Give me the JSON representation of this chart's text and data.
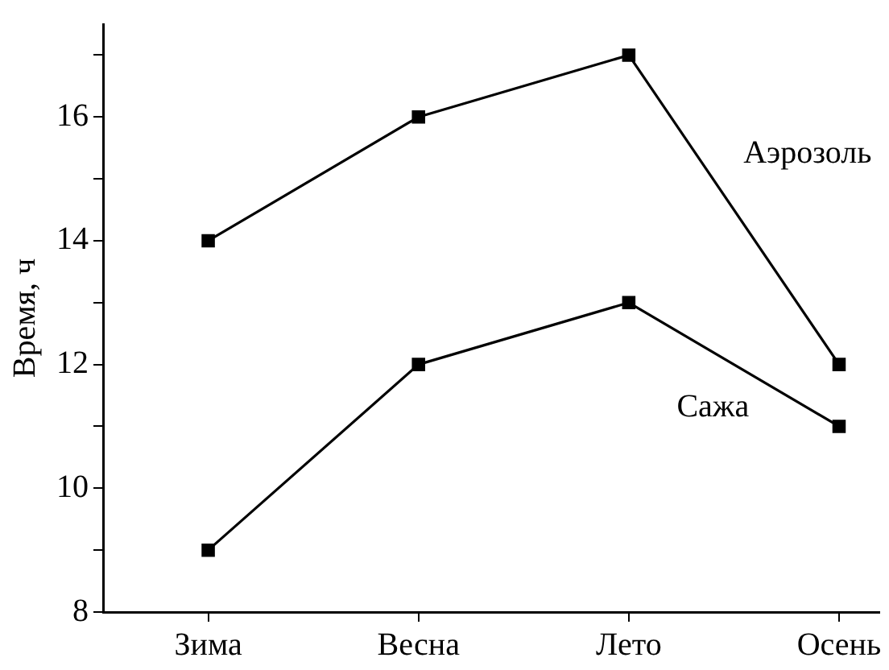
{
  "chart_data": {
    "type": "line",
    "ylabel": "Время, ч",
    "categories": [
      "Зима",
      "Весна",
      "Лето",
      "Осень"
    ],
    "series": [
      {
        "name": "Аэрозоль",
        "color": "#000000",
        "values": [
          14,
          16,
          17,
          12
        ]
      },
      {
        "name": "Сажа",
        "color": "#000000",
        "values": [
          9,
          12,
          13,
          11
        ]
      }
    ],
    "ylim": [
      8,
      17.5
    ],
    "yticks": [
      8,
      {
        "value": 9,
        "label": null
      },
      10,
      {
        "value": 11,
        "label": null
      },
      12,
      {
        "value": 13,
        "label": null
      },
      14,
      {
        "value": 15,
        "label": null
      },
      16,
      {
        "value": 17,
        "label": null
      }
    ],
    "marker": "square",
    "line_style": "solid",
    "grid": false,
    "legend": false
  }
}
